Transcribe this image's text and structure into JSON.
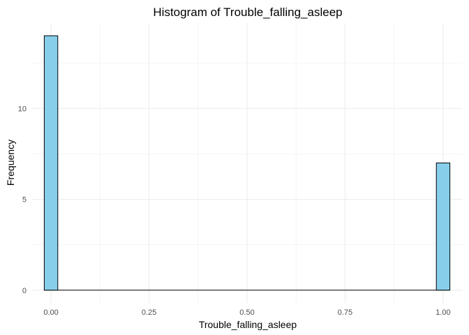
{
  "chart_data": {
    "type": "bar",
    "title": "Histogram of Trouble_falling_asleep",
    "xlabel": "Trouble_falling_asleep",
    "ylabel": "Frequency",
    "xlim": [
      -0.05,
      1.05
    ],
    "ylim": [
      -0.7,
      14.7
    ],
    "x_ticks": [
      0.0,
      0.25,
      0.5,
      0.75,
      1.0
    ],
    "x_tick_labels": [
      "0.00",
      "0.25",
      "0.50",
      "0.75",
      "1.00"
    ],
    "y_ticks": [
      0,
      5,
      10
    ],
    "y_tick_labels": [
      "0",
      "5",
      "10"
    ],
    "bins": 30,
    "bin_width": 0.03448,
    "bars": [
      {
        "x": 0.0,
        "count": 14
      },
      {
        "x": 1.0,
        "count": 7
      }
    ],
    "bar_fill": "#87CEEB",
    "bar_outline": "#000000",
    "grid": true,
    "legend": "none"
  }
}
